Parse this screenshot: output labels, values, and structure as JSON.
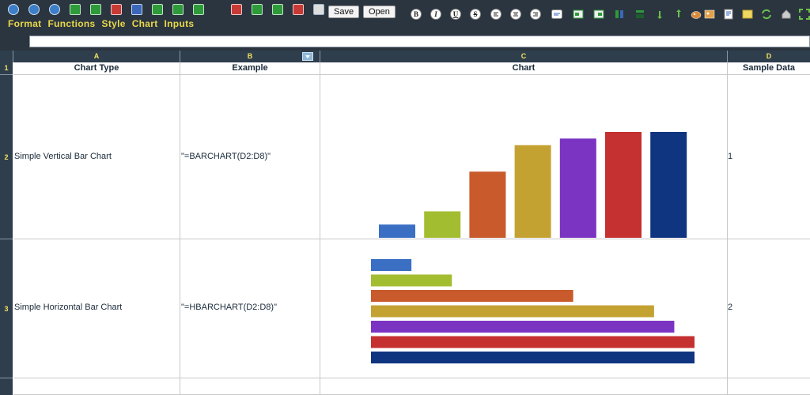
{
  "toolbar": {
    "save_label": "Save",
    "open_label": "Open",
    "format_buttons": [
      "B",
      "I",
      "U",
      "S"
    ]
  },
  "menu": {
    "items": [
      "Format",
      "Functions",
      "Style",
      "Chart",
      "Inputs"
    ]
  },
  "formula_bar": {
    "value": ""
  },
  "grid": {
    "columns": [
      "A",
      "B",
      "C",
      "D"
    ],
    "rows": [
      "1",
      "2",
      "3"
    ],
    "header": {
      "chart_type": "Chart Type",
      "example": "Example",
      "chart": "Chart",
      "sample_data": "Sample Data"
    },
    "row2": {
      "chart_type": "Simple Vertical Bar Chart",
      "example": "\"=BARCHART(D2:D8)\"",
      "sample": "1"
    },
    "row3": {
      "chart_type": "Simple Horizontal Bar Chart",
      "example": "\"=HBARCHART(D2:D8)\"",
      "sample": "2"
    }
  },
  "chart_data": [
    {
      "type": "bar",
      "orientation": "vertical",
      "values": [
        1,
        2,
        5,
        7,
        7.5,
        8,
        8
      ],
      "colors": [
        "#3a6fc4",
        "#a3bd30",
        "#c85a2c",
        "#c4a232",
        "#7b34c2",
        "#c53030",
        "#0f3480"
      ]
    },
    {
      "type": "bar",
      "orientation": "horizontal",
      "values": [
        1,
        2,
        5,
        7,
        7.5,
        8,
        8
      ],
      "colors": [
        "#3a6fc4",
        "#a3bd30",
        "#c85a2c",
        "#c4a232",
        "#7b34c2",
        "#c53030",
        "#0f3480"
      ]
    }
  ]
}
